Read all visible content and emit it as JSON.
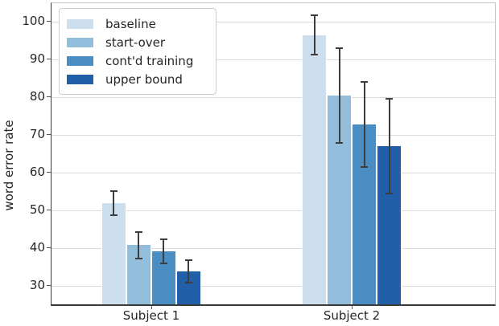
{
  "figure": {
    "background": "#ffffff",
    "text_color": "#262626"
  },
  "chart_data": {
    "type": "bar",
    "title": "",
    "xlabel": "",
    "ylabel": "word error rate",
    "categories": [
      "Subject 1",
      "Subject 2"
    ],
    "series": [
      {
        "name": "baseline",
        "color": "#cddfee",
        "values": [
          51.8,
          96.5
        ],
        "errors": [
          3.2,
          5.2
        ]
      },
      {
        "name": "start-over",
        "color": "#92bedc",
        "values": [
          40.7,
          80.4
        ],
        "errors": [
          3.5,
          12.6
        ]
      },
      {
        "name": "cont'd training",
        "color": "#4a8ec4",
        "values": [
          39.1,
          72.8
        ],
        "errors": [
          3.2,
          11.3
        ]
      },
      {
        "name": "upper bound",
        "color": "#215fa8",
        "values": [
          33.8,
          67.0
        ],
        "errors": [
          3.0,
          12.6
        ]
      }
    ],
    "ylim": [
      25,
      105
    ],
    "yticks": [
      30,
      40,
      50,
      60,
      70,
      80,
      90,
      100
    ],
    "grid": true,
    "legend_position": "upper left",
    "error_bar_color": "#3d3d3d",
    "gridline_color": "#dcdcdc"
  }
}
